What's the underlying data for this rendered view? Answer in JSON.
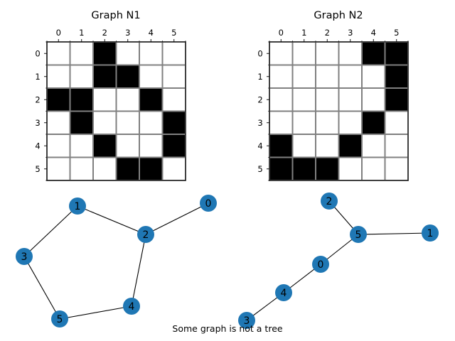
{
  "caption": "Some graph is not a tree",
  "colors": {
    "filled_cell": "#000000",
    "empty_cell": "#ffffff",
    "grid_line": "#808080",
    "node": "#1f77b4",
    "edge": "#000000"
  },
  "chart_data": [
    {
      "type": "heatmap",
      "title": "Graph N1",
      "x_ticks": [
        "0",
        "1",
        "2",
        "3",
        "4",
        "5"
      ],
      "y_ticks": [
        "0",
        "1",
        "2",
        "3",
        "4",
        "5"
      ],
      "x_tick_position": "top",
      "grid": true,
      "matrix": [
        [
          0,
          0,
          1,
          0,
          0,
          0
        ],
        [
          0,
          0,
          1,
          1,
          0,
          0
        ],
        [
          1,
          1,
          0,
          0,
          1,
          0
        ],
        [
          0,
          1,
          0,
          0,
          0,
          1
        ],
        [
          0,
          0,
          1,
          0,
          0,
          1
        ],
        [
          0,
          0,
          0,
          1,
          1,
          0
        ]
      ]
    },
    {
      "type": "heatmap",
      "title": "Graph N2",
      "x_ticks": [
        "0",
        "1",
        "2",
        "3",
        "4",
        "5"
      ],
      "y_ticks": [
        "0",
        "1",
        "2",
        "3",
        "4",
        "5"
      ],
      "x_tick_position": "top",
      "grid": true,
      "matrix": [
        [
          0,
          0,
          0,
          0,
          1,
          1
        ],
        [
          0,
          0,
          0,
          0,
          0,
          1
        ],
        [
          0,
          0,
          0,
          0,
          0,
          1
        ],
        [
          0,
          0,
          0,
          0,
          1,
          0
        ],
        [
          1,
          0,
          0,
          1,
          0,
          0
        ],
        [
          1,
          1,
          1,
          0,
          0,
          0
        ]
      ]
    },
    {
      "type": "network",
      "nodes": [
        "0",
        "1",
        "2",
        "3",
        "4",
        "5"
      ],
      "edges": [
        [
          "0",
          "2"
        ],
        [
          "1",
          "2"
        ],
        [
          "1",
          "3"
        ],
        [
          "2",
          "4"
        ],
        [
          "3",
          "5"
        ],
        [
          "4",
          "5"
        ]
      ]
    },
    {
      "type": "network",
      "nodes": [
        "0",
        "1",
        "2",
        "3",
        "4",
        "5"
      ],
      "edges": [
        [
          "0",
          "5"
        ],
        [
          "0",
          "4"
        ],
        [
          "1",
          "5"
        ],
        [
          "2",
          "5"
        ],
        [
          "3",
          "4"
        ]
      ]
    }
  ]
}
